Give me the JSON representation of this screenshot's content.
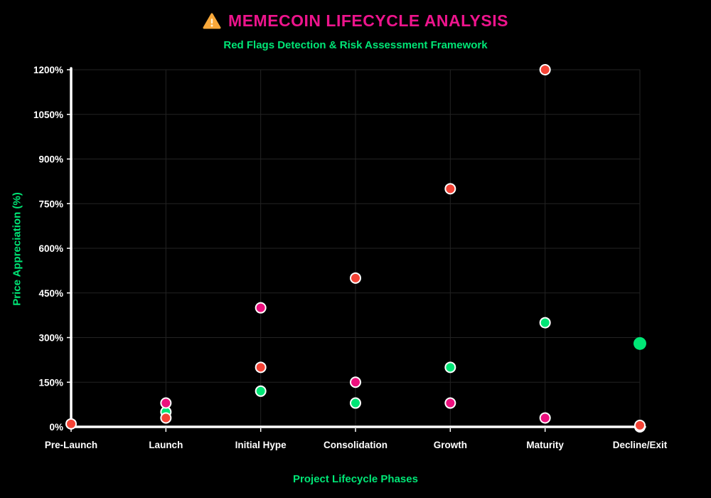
{
  "header": {
    "title": "MEMECOIN LIFECYCLE ANALYSIS",
    "subtitle": "Red Flags Detection & Risk Assessment Framework"
  },
  "colors": {
    "background": "#000000",
    "title": "#ed148c",
    "subtitle": "#00e676",
    "axis_title": "#00e676",
    "axis_line": "#ffffff",
    "tick_label": "#ffffff",
    "gridline": "#232323",
    "point_ring": "#ffffff",
    "warning_triangle": "#f9a83a",
    "warning_exclamation": "#fff3d6"
  },
  "chart_data": {
    "type": "scatter",
    "title": "MEMECOIN LIFECYCLE ANALYSIS",
    "subtitle": "Red Flags Detection & Risk Assessment Framework",
    "xlabel": "Project Lifecycle Phases",
    "ylabel": "Price Appreciation (%)",
    "categories": [
      "Pre-Launch",
      "Launch",
      "Initial Hype",
      "Consolidation",
      "Growth",
      "Maturity",
      "Decline/Exit"
    ],
    "y_tick_labels": [
      "0%",
      "150%",
      "300%",
      "450%",
      "600%",
      "750%",
      "900%",
      "1050%",
      "1200%"
    ],
    "y_tick_values": [
      0,
      150,
      300,
      450,
      600,
      750,
      900,
      1050,
      1200
    ],
    "ylim": [
      0,
      1200
    ],
    "grid": true,
    "legend": "none",
    "series": [
      {
        "name": "green-dots",
        "color": "#00e676",
        "points": [
          {
            "category": "Launch",
            "value": 50
          },
          {
            "category": "Initial Hype",
            "value": 120
          },
          {
            "category": "Consolidation",
            "value": 80
          },
          {
            "category": "Growth",
            "value": 200
          },
          {
            "category": "Maturity",
            "value": 350
          },
          {
            "category": "Decline/Exit",
            "value": 280,
            "radius": 9,
            "ring": false
          }
        ]
      },
      {
        "name": "magenta-dots",
        "color": "#ec107e",
        "points": [
          {
            "category": "Launch",
            "value": 80
          },
          {
            "category": "Initial Hype",
            "value": 400
          },
          {
            "category": "Consolidation",
            "value": 150
          },
          {
            "category": "Growth",
            "value": 80
          },
          {
            "category": "Maturity",
            "value": 30
          },
          {
            "category": "Decline/Exit",
            "value": 0
          }
        ]
      },
      {
        "name": "red-dots",
        "color": "#f44336",
        "points": [
          {
            "category": "Pre-Launch",
            "value": 10
          },
          {
            "category": "Launch",
            "value": 30
          },
          {
            "category": "Initial Hype",
            "value": 200
          },
          {
            "category": "Consolidation",
            "value": 500
          },
          {
            "category": "Growth",
            "value": 800
          },
          {
            "category": "Maturity",
            "value": 1200
          },
          {
            "category": "Decline/Exit",
            "value": 5
          }
        ]
      }
    ]
  }
}
